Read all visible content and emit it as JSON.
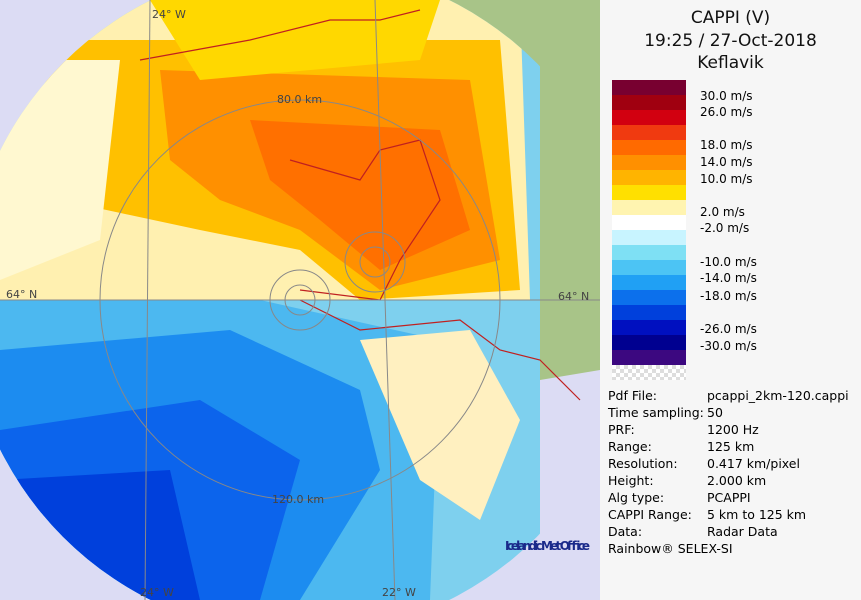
{
  "header": {
    "product": "CAPPI (V)",
    "time": "19:25 / 27-Oct-2018",
    "site": "Keflavik"
  },
  "legend": {
    "colors": [
      "#780030",
      "#a00010",
      "#d20010",
      "#f03a10",
      "#ff6a00",
      "#ff9000",
      "#ffb400",
      "#ffe000",
      "#fff4b0",
      "#ffffff",
      "#c8f4ff",
      "#7ee0f4",
      "#4cc4f4",
      "#20a0f4",
      "#0c70ec",
      "#0040dc",
      "#0010c0",
      "#000090",
      "#3c0880"
    ],
    "labels": [
      "30.0 m/s",
      "26.0 m/s",
      "18.0 m/s",
      "14.0 m/s",
      "10.0 m/s",
      "2.0 m/s",
      "-2.0 m/s",
      "-10.0 m/s",
      "-14.0 m/s",
      "-18.0 m/s",
      "-26.0 m/s",
      "-30.0 m/s"
    ]
  },
  "info": [
    [
      "Pdf File:",
      "pcappi_2km-120.cappi"
    ],
    [
      "Time sampling:",
      "50"
    ],
    [
      "PRF:",
      "1200 Hz"
    ],
    [
      "Range:",
      "125 km"
    ],
    [
      "Resolution:",
      "0.417 km/pixel"
    ],
    [
      "Height:",
      "2.000 km"
    ],
    [
      "Alg type:",
      "PCAPPI"
    ],
    [
      "CAPPI Range:",
      "5 km to 125 km"
    ],
    [
      "Data:",
      "Radar Data"
    ]
  ],
  "footer": "Rainbow® SELEX-SI",
  "map_labels": [
    "24° W",
    "80.0 km",
    "64° N",
    "64° N",
    "120.0 km",
    "24° W",
    "22° W"
  ],
  "logo": "Icelandic Met Office"
}
